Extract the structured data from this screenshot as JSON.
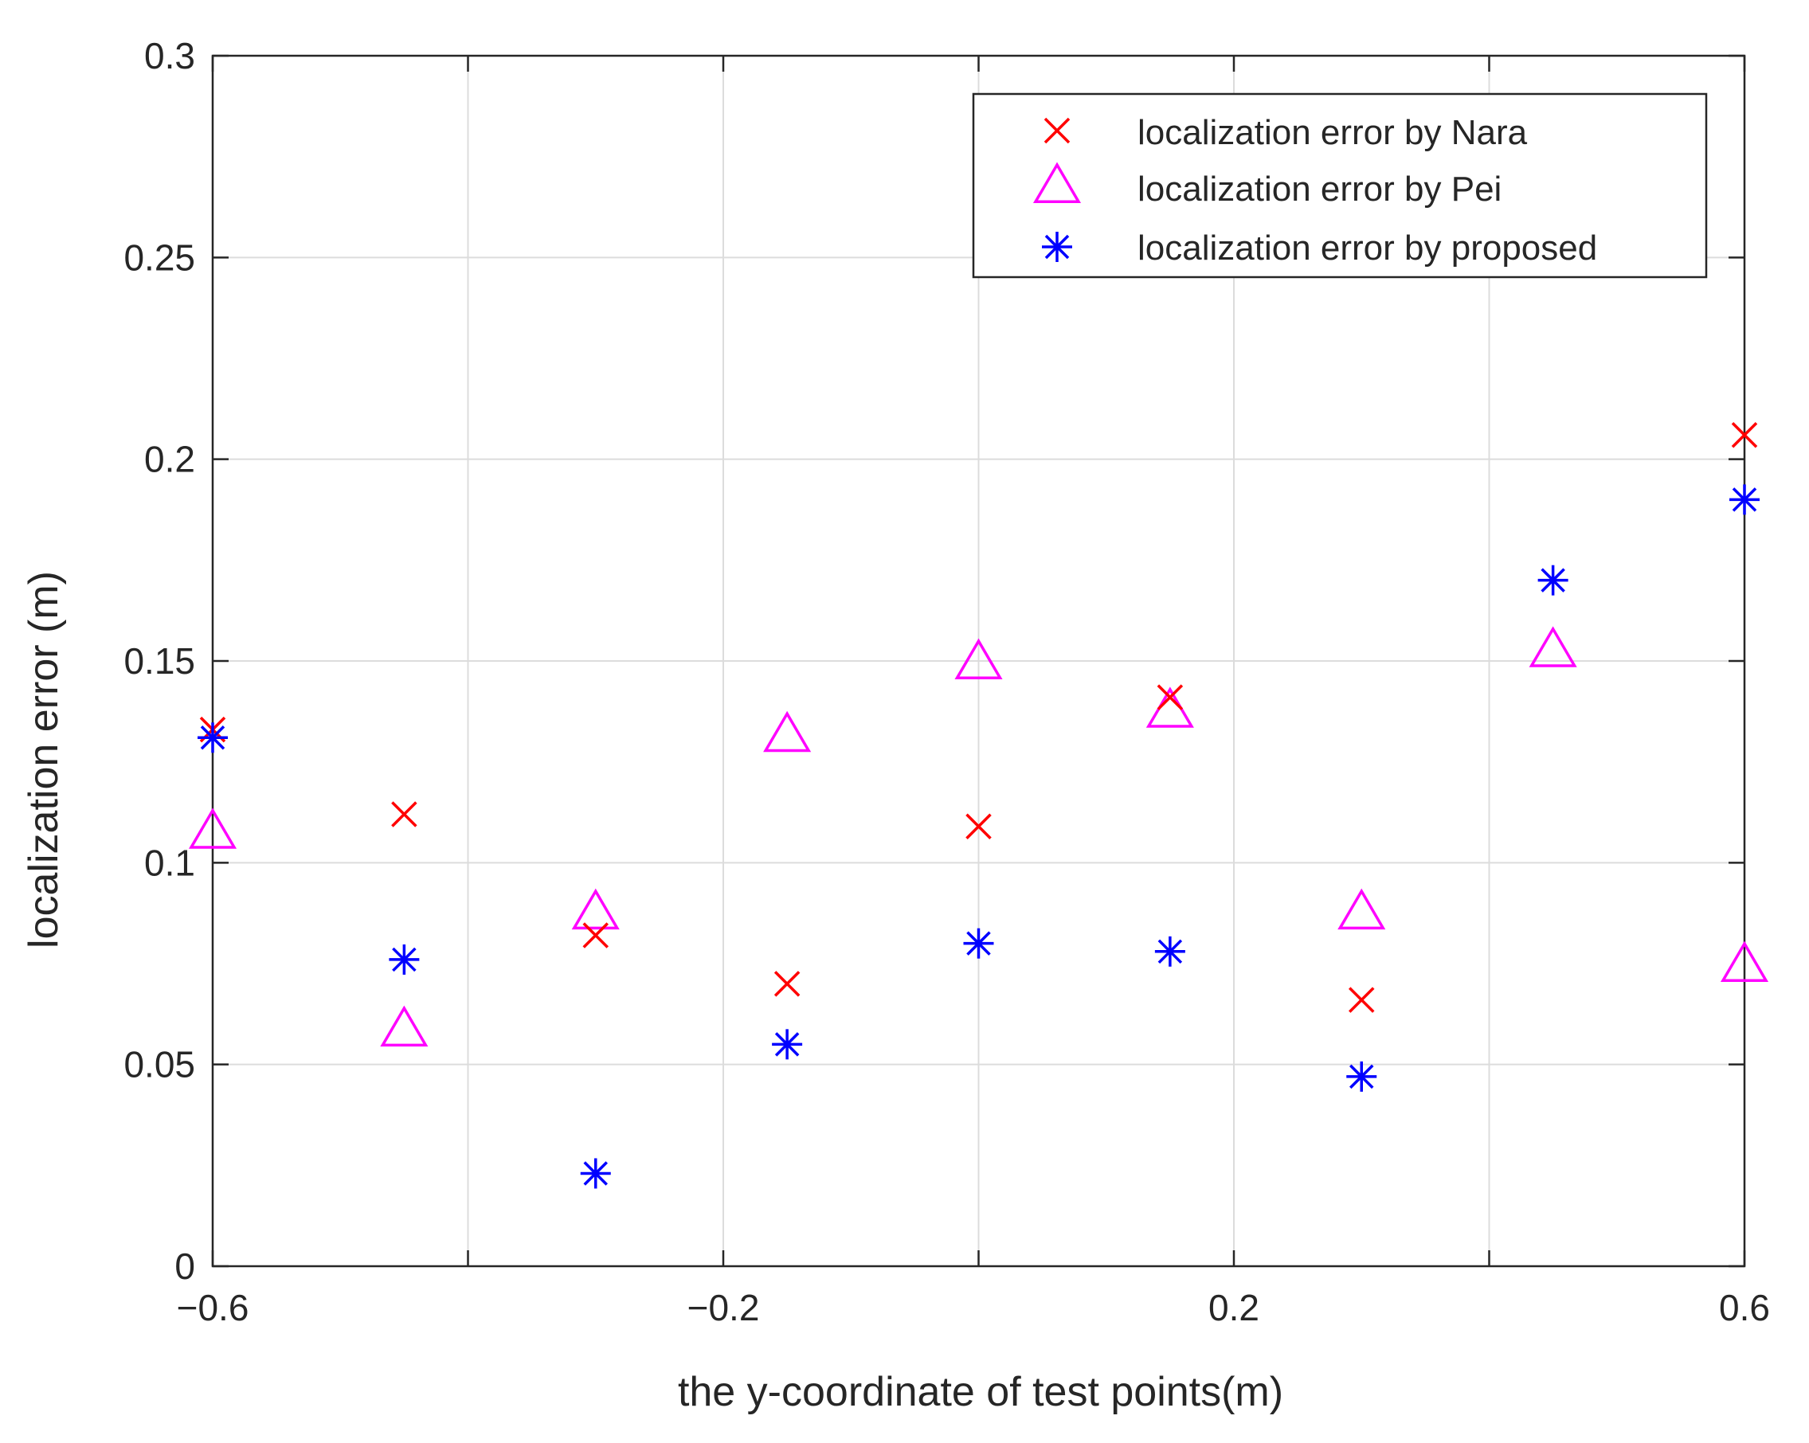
{
  "chart_data": {
    "type": "scatter",
    "title": "",
    "xlabel": "the y-coordinate of test points(m)",
    "ylabel": "localization error (m)",
    "xlim": [
      -0.6,
      0.6
    ],
    "ylim": [
      0,
      0.3
    ],
    "xticks": [
      -0.6,
      -0.4,
      -0.2,
      0,
      0.2,
      0.4,
      0.6
    ],
    "xtick_labels": [
      "−0.6",
      "",
      "−0.2",
      "",
      "0.2",
      "",
      "0.6"
    ],
    "yticks": [
      0,
      0.05,
      0.1,
      0.15,
      0.2,
      0.25,
      0.3
    ],
    "ytick_labels": [
      "0",
      "0.05",
      "0.1",
      "0.15",
      "0.2",
      "0.25",
      "0.3"
    ],
    "grid": true,
    "legend_position": "top-right",
    "series": [
      {
        "name": "localization error by Nara",
        "marker": "x",
        "color": "#ff0000",
        "x": [
          -0.6,
          -0.45,
          -0.3,
          -0.15,
          0,
          0.15,
          0.3,
          0.6
        ],
        "y": [
          0.133,
          0.112,
          0.082,
          0.07,
          0.109,
          0.141,
          0.066,
          0.206
        ]
      },
      {
        "name": "localization error by Pei",
        "marker": "triangle",
        "color": "#ff00ff",
        "x": [
          -0.6,
          -0.45,
          -0.3,
          -0.15,
          0,
          0.15,
          0.3,
          0.45,
          0.6
        ],
        "y": [
          0.108,
          0.059,
          0.088,
          0.132,
          0.15,
          0.138,
          0.088,
          0.153,
          0.075
        ]
      },
      {
        "name": "localization error by proposed",
        "marker": "star",
        "color": "#0000ff",
        "x": [
          -0.6,
          -0.45,
          -0.3,
          -0.15,
          0,
          0.15,
          0.3,
          0.45,
          0.6
        ],
        "y": [
          0.131,
          0.076,
          0.023,
          0.055,
          0.08,
          0.078,
          0.047,
          0.17,
          0.19
        ]
      }
    ]
  }
}
